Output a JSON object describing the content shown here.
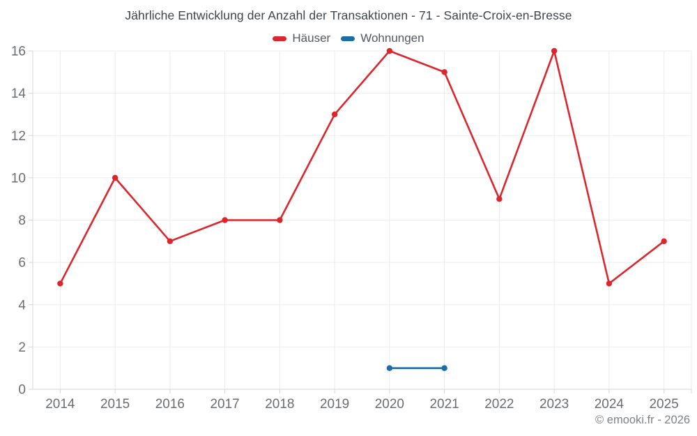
{
  "page": {
    "footer": "© emooki.fr - 2026"
  },
  "colors": {
    "grid": "#ebebeb",
    "axis": "#d5d5d5",
    "tick_label": "#696d71",
    "title": "#3e444a",
    "legend_label": "#53585e",
    "footer": "#7d8185"
  },
  "chart_data": {
    "type": "line",
    "title": "Jährliche Entwicklung der Anzahl der Transaktionen - 71 - Sainte-Croix-en-Bresse",
    "xlabel": "",
    "ylabel": "",
    "legend_position": "top",
    "grid": true,
    "categories": [
      "2014",
      "2015",
      "2016",
      "2017",
      "2018",
      "2019",
      "2020",
      "2021",
      "2022",
      "2023",
      "2024",
      "2025"
    ],
    "ylim": [
      0,
      16
    ],
    "y_ticks": [
      0,
      2,
      4,
      6,
      8,
      10,
      12,
      14,
      16
    ],
    "series": [
      {
        "name": "Häuser",
        "color": "#dc262d",
        "values": [
          5,
          10,
          7,
          8,
          8,
          13,
          16,
          15,
          9,
          16,
          5,
          7
        ]
      },
      {
        "name": "Wohnungen",
        "color": "#1c6ca8",
        "values": [
          null,
          null,
          null,
          null,
          null,
          null,
          1,
          1,
          null,
          null,
          null,
          null
        ]
      }
    ]
  }
}
